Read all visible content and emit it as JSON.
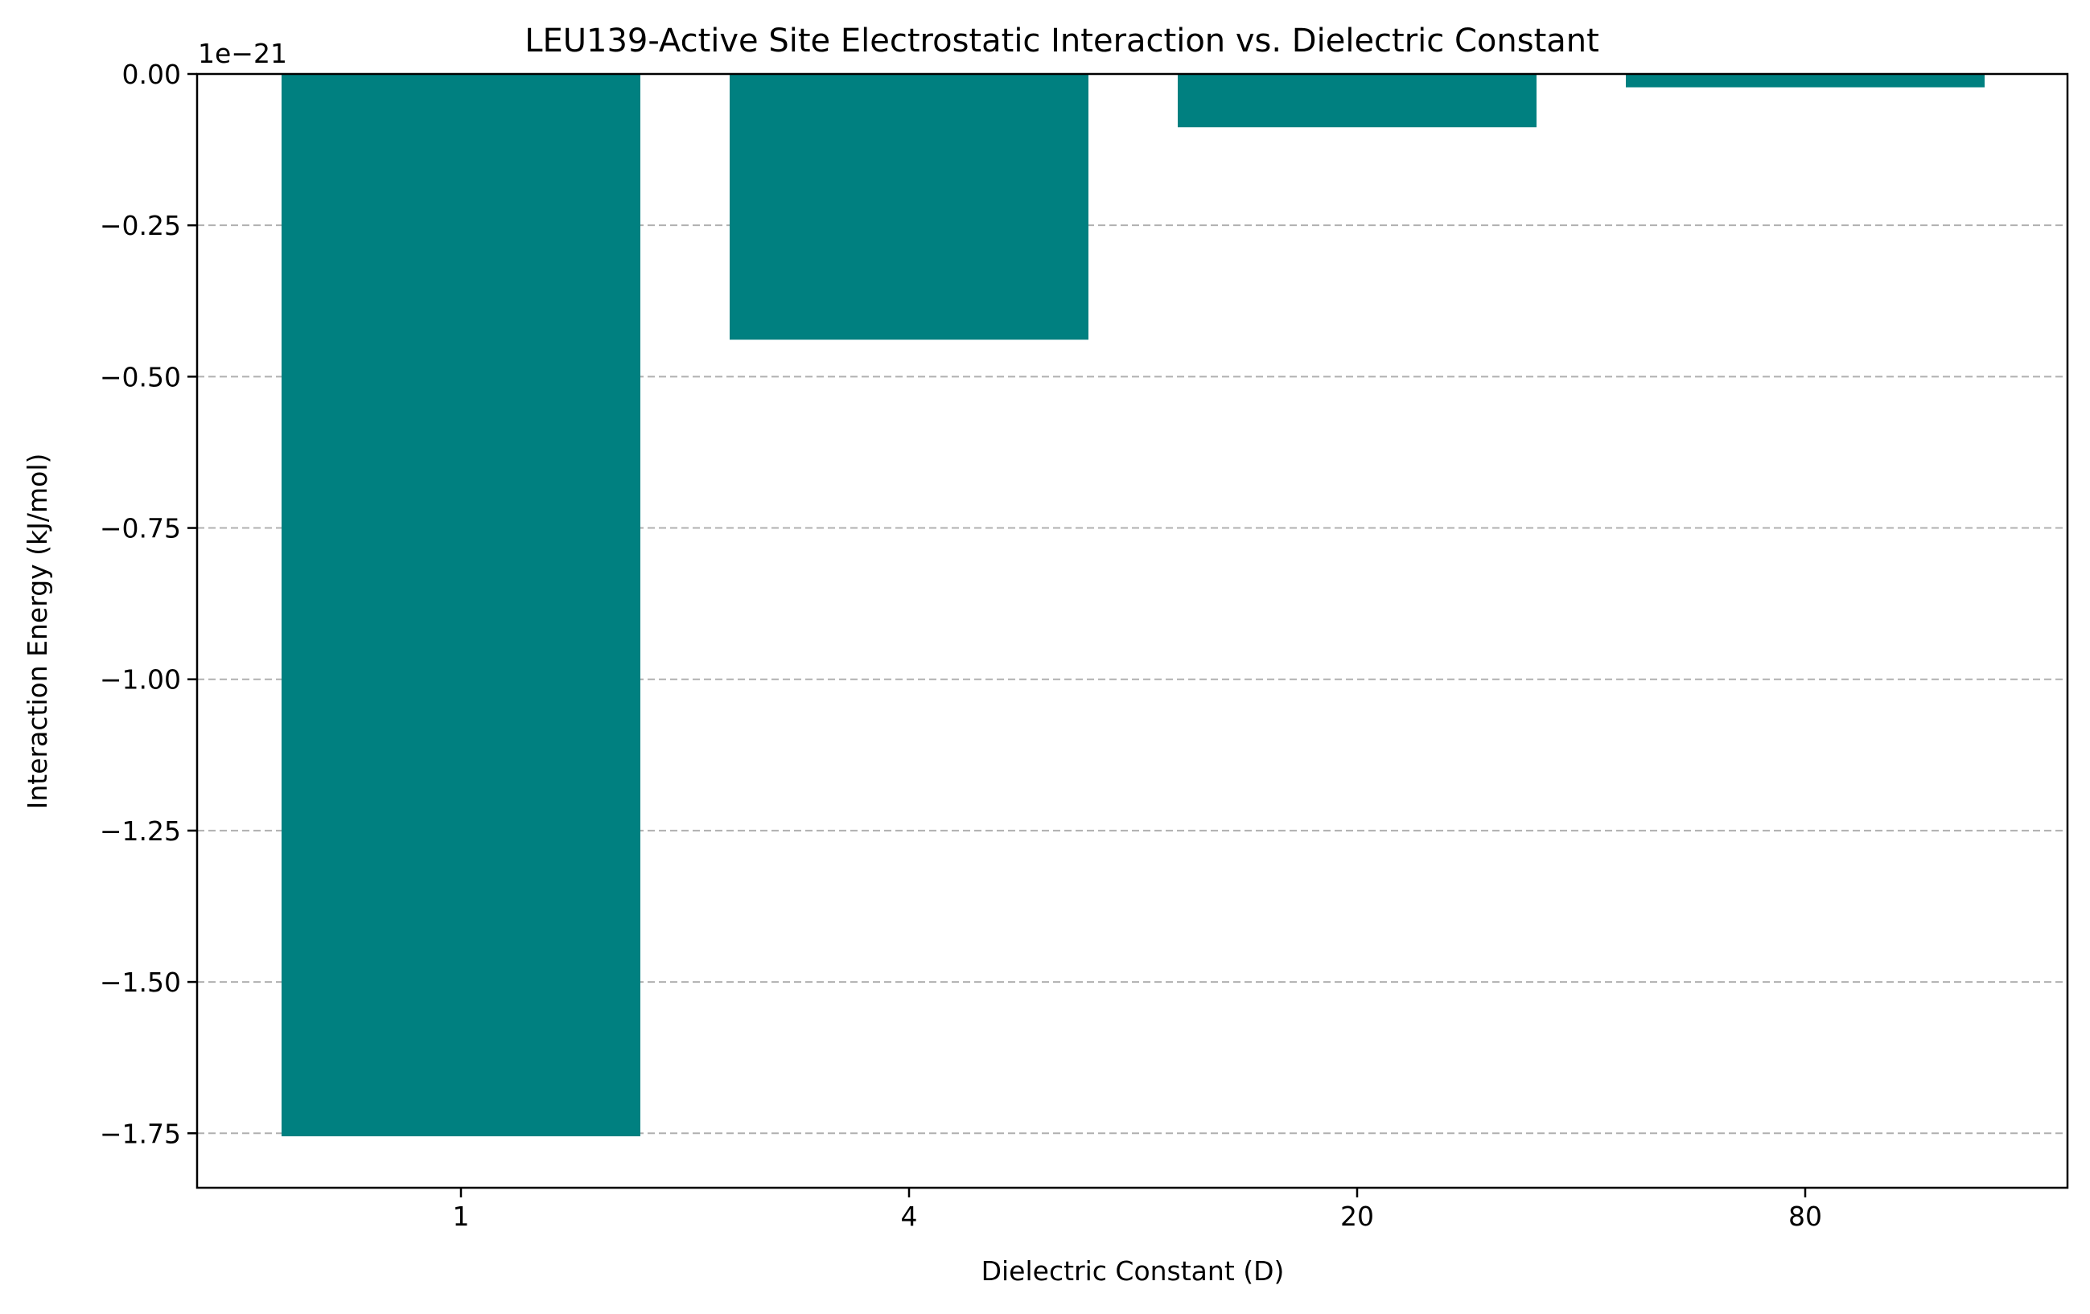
{
  "chart_data": {
    "type": "bar",
    "title": "LEU139-Active Site Electrostatic Interaction vs. Dielectric Constant",
    "xlabel": "Dielectric Constant (D)",
    "ylabel": "Interaction Energy (kJ/mol)",
    "y_offset_label": "1e−21",
    "categories": [
      "1",
      "4",
      "20",
      "80"
    ],
    "values": [
      -1.755e-21,
      -4.39e-22,
      -8.8e-23,
      -2.2e-23
    ],
    "ylim": [
      -1.84e-21,
      0
    ],
    "yticks": [
      0,
      -2.5e-22,
      -5e-22,
      -7.5e-22,
      -1e-21,
      -1.25e-21,
      -1.5e-21,
      -1.75e-21
    ],
    "ytick_labels": [
      "0.00",
      "−0.25",
      "−0.50",
      "−0.75",
      "−1.00",
      "−1.25",
      "−1.50",
      "−1.75"
    ],
    "grid": "y-dashed",
    "legend": "none",
    "bar_color": "#008080"
  }
}
